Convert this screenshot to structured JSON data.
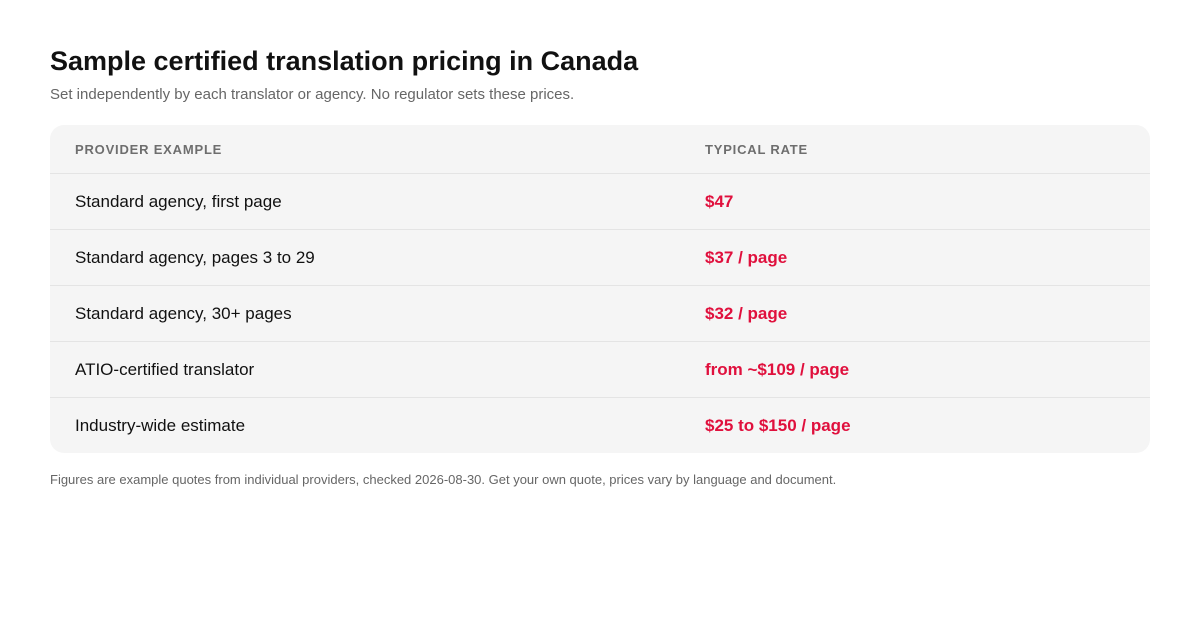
{
  "page": {
    "title": "Sample certified translation pricing in Canada",
    "subtitle": "Set independently by each translator or agency. No regulator sets these prices.",
    "footnote": "Figures are example quotes from individual providers, checked 2026-08-30. Get your own quote, prices vary by language and document."
  },
  "table": {
    "headers": {
      "provider": "PROVIDER EXAMPLE",
      "rate": "TYPICAL RATE"
    },
    "rows": [
      {
        "provider": "Standard agency, first page",
        "rate": "$47"
      },
      {
        "provider": "Standard agency, pages 3 to 29",
        "rate": "$37 / page"
      },
      {
        "provider": "Standard agency, 30+ pages",
        "rate": "$32 / page"
      },
      {
        "provider": "ATIO-certified translator",
        "rate": "from ~$109 / page"
      },
      {
        "provider": "Industry-wide estimate",
        "rate": "$25 to $150 / page"
      }
    ]
  },
  "colors": {
    "accent_rate": "#e0103d",
    "table_background": "#f5f5f5",
    "muted_text": "#666666"
  }
}
